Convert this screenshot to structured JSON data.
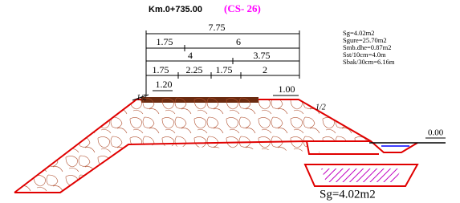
{
  "header": {
    "title": "Km.0+735.00",
    "section": "(CS- 26)"
  },
  "dimensions": {
    "total": "7.75",
    "row2": [
      "1.75",
      "6"
    ],
    "row3": [
      "4",
      "3.75"
    ],
    "row4": [
      "1.75",
      "2.25",
      "1.75",
      "2"
    ],
    "left_height": "1.20",
    "right_height": "1.00"
  },
  "slopes": {
    "left": "1/2",
    "right": "1/2"
  },
  "ground_level": "0.00",
  "areas": [
    "Sg=4.02m2",
    "Sgure=25.70m2",
    "Smb.dhe=0.87m2",
    "Sst/10cm=4.0m",
    "Sbak/30cm=6.16m"
  ],
  "footer_area": "Sg=4.02m2"
}
